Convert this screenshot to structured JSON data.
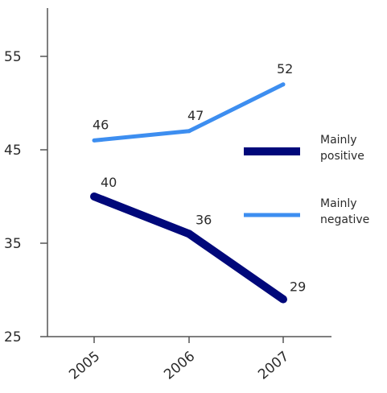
{
  "chart_data": {
    "type": "line",
    "categories": [
      "2005",
      "2006",
      "2007"
    ],
    "ylim": [
      25,
      60
    ],
    "yticks": [
      25,
      35,
      45,
      55
    ],
    "grid": false,
    "legend_position": "right",
    "series": [
      {
        "name_lines": [
          "Mainly",
          "positive"
        ],
        "values": [
          40,
          36,
          29
        ],
        "labels": [
          "40",
          "36",
          "29"
        ],
        "color": "#00087a"
      },
      {
        "name_lines": [
          "Mainly",
          "negative"
        ],
        "values": [
          46,
          47,
          52
        ],
        "labels": [
          "46",
          "47",
          "52"
        ],
        "color": "#3d8ef0"
      }
    ]
  }
}
